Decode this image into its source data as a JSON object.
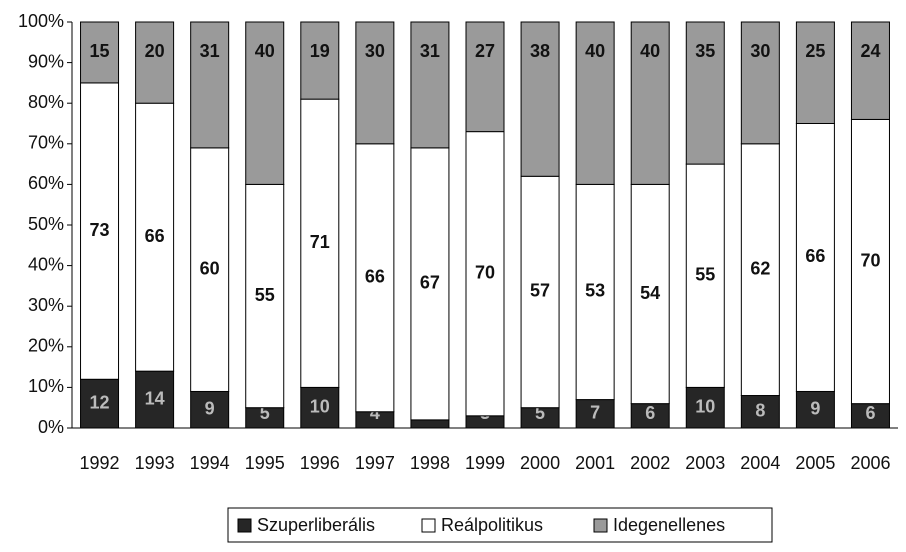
{
  "chart_data": {
    "type": "stacked_bar",
    "categories": [
      "1992",
      "1993",
      "1994",
      "1995",
      "1996",
      "1997",
      "1998",
      "1999",
      "2000",
      "2001",
      "2002",
      "2003",
      "2004",
      "2005",
      "2006"
    ],
    "series": [
      {
        "name": "Szuperliberális",
        "color": "#262626",
        "values": [
          12,
          14,
          9,
          5,
          10,
          4,
          2,
          3,
          5,
          7,
          6,
          10,
          8,
          9,
          6
        ]
      },
      {
        "name": "Reálpolitikus",
        "color": "#ffffff",
        "values": [
          73,
          66,
          60,
          55,
          71,
          66,
          67,
          70,
          57,
          53,
          54,
          55,
          62,
          66,
          70
        ]
      },
      {
        "name": "Idegenellenes",
        "color": "#9a9a9a",
        "values": [
          15,
          20,
          31,
          40,
          19,
          30,
          31,
          27,
          38,
          40,
          40,
          35,
          30,
          25,
          24
        ]
      }
    ],
    "ylim": [
      0,
      100
    ],
    "yticks": [
      {
        "value": 0,
        "label": "0%"
      },
      {
        "value": 10,
        "label": "10%"
      },
      {
        "value": 20,
        "label": "20%"
      },
      {
        "value": 30,
        "label": "30%"
      },
      {
        "value": 40,
        "label": "40%"
      },
      {
        "value": 50,
        "label": "50%"
      },
      {
        "value": 60,
        "label": "60%"
      },
      {
        "value": 70,
        "label": "70%"
      },
      {
        "value": 80,
        "label": "80%"
      },
      {
        "value": 90,
        "label": "90%"
      },
      {
        "value": 100,
        "label": "100%"
      }
    ],
    "legend": "bottom"
  }
}
